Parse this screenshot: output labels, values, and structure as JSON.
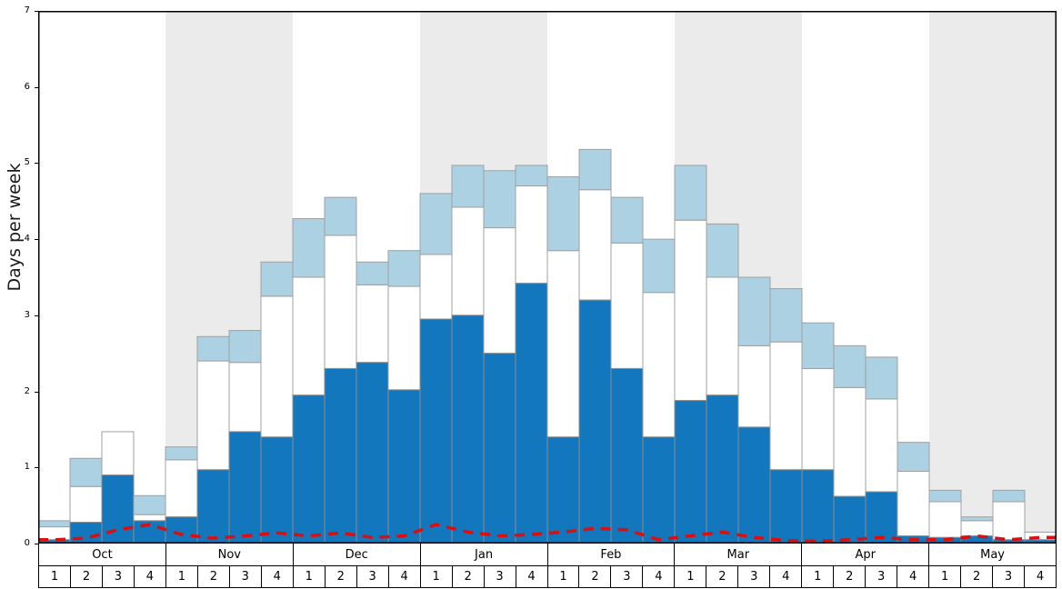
{
  "chart_data": {
    "type": "bar",
    "title": "",
    "ylabel": "Days per week",
    "xlabel": "",
    "ylim": [
      0,
      7
    ],
    "yticks": [
      0,
      1,
      2,
      3,
      4,
      5,
      6,
      7
    ],
    "grid": false,
    "legend_position": "none",
    "months": [
      "Oct",
      "Nov",
      "Dec",
      "Jan",
      "Feb",
      "Mar",
      "Apr",
      "May"
    ],
    "week_labels": [
      "1",
      "2",
      "3",
      "4"
    ],
    "series": [
      {
        "name": "dark-blue-days",
        "role": "bottom stacked segment (dark blue)",
        "values": [
          0.05,
          0.28,
          0.9,
          0.3,
          0.35,
          0.97,
          1.47,
          1.4,
          1.95,
          2.3,
          2.38,
          2.02,
          2.95,
          3.0,
          2.5,
          3.42,
          1.4,
          3.2,
          2.3,
          1.4,
          1.88,
          1.95,
          1.53,
          0.97,
          0.97,
          0.62,
          0.68,
          0.1,
          0.08,
          0.1,
          0.05,
          0.05
        ]
      },
      {
        "name": "white-days-cumulative-top",
        "role": "middle stacked segment top (white), cumulative value",
        "values": [
          0.22,
          0.75,
          1.47,
          0.38,
          1.1,
          2.4,
          2.38,
          3.25,
          3.5,
          4.05,
          3.4,
          3.38,
          3.8,
          4.42,
          4.15,
          4.7,
          3.85,
          4.65,
          3.95,
          3.3,
          4.25,
          3.5,
          2.6,
          2.65,
          2.3,
          2.05,
          1.9,
          0.95,
          0.55,
          0.3,
          0.55,
          0.15
        ]
      },
      {
        "name": "light-blue-days-total",
        "role": "top stacked segment top (light blue), total bar height",
        "values": [
          0.3,
          1.12,
          1.47,
          0.63,
          1.27,
          2.72,
          2.8,
          3.7,
          4.27,
          4.55,
          3.7,
          3.85,
          4.6,
          4.97,
          4.9,
          4.97,
          4.82,
          5.18,
          4.55,
          4.0,
          4.97,
          4.2,
          3.5,
          3.35,
          2.9,
          2.6,
          2.45,
          1.33,
          0.7,
          0.35,
          0.7,
          0.15
        ]
      },
      {
        "name": "red-dashed-line",
        "role": "dashed red overlay line",
        "values": [
          0.05,
          0.07,
          0.18,
          0.25,
          0.12,
          0.07,
          0.1,
          0.14,
          0.1,
          0.14,
          0.08,
          0.1,
          0.25,
          0.15,
          0.1,
          0.12,
          0.15,
          0.2,
          0.18,
          0.05,
          0.1,
          0.15,
          0.08,
          0.04,
          0.03,
          0.05,
          0.08,
          0.05,
          0.05,
          0.1,
          0.05,
          0.08
        ]
      }
    ]
  },
  "colors": {
    "dark_blue": "#1377bd",
    "light_blue": "#acd1e2",
    "white_segment": "#ffffff",
    "bar_border": "#a0a0a0",
    "dark_bar_border": "#8d8d8d",
    "month_band": "#ebebeb",
    "red_line": "#de0e0e",
    "frame": "#000000"
  }
}
